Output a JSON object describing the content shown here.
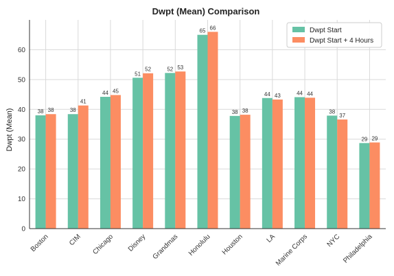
{
  "chart_data": {
    "type": "bar",
    "title": "Dwpt (Mean) Comparison",
    "xlabel": "",
    "ylabel": "Dwpt (Mean)",
    "ylim": [
      0,
      70
    ],
    "yticks": [
      0,
      10,
      20,
      30,
      40,
      50,
      60
    ],
    "grid": true,
    "legend_position": "top-right",
    "categories": [
      "Boston",
      "CIM",
      "Chicago",
      "Disney",
      "Grandmas",
      "Honolulu",
      "Houston",
      "LA",
      "Marine Corps",
      "NYC",
      "Philadelphia"
    ],
    "series": [
      {
        "name": "Dwpt Start",
        "color": "#66c2a5",
        "values": [
          38.0,
          38.4,
          44.2,
          50.6,
          52.2,
          65.0,
          37.8,
          43.8,
          44.1,
          37.9,
          28.7
        ],
        "labels": [
          "38",
          "38",
          "44",
          "51",
          "52",
          "65",
          "38",
          "44",
          "44",
          "38",
          "29"
        ]
      },
      {
        "name": "Dwpt Start + 4 Hours",
        "color": "#fc8d62",
        "values": [
          38.4,
          41.3,
          44.8,
          52.1,
          52.7,
          66.0,
          38.2,
          43.3,
          43.9,
          36.6,
          28.9
        ],
        "labels": [
          "38",
          "41",
          "45",
          "52",
          "53",
          "66",
          "38",
          "43",
          "44",
          "37",
          "29"
        ]
      }
    ]
  }
}
